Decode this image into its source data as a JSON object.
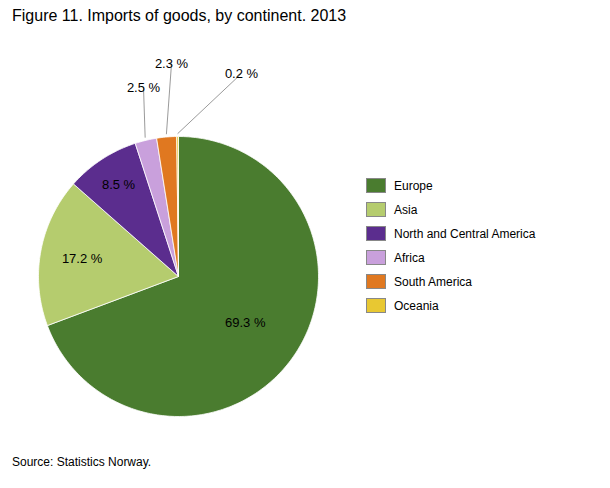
{
  "chart_data": {
    "type": "pie",
    "title": "Figure 11. Imports of goods, by continent. 2013",
    "source": "Source: Statistics Norway.",
    "categories": [
      "Europe",
      "Asia",
      "North and Central America",
      "Africa",
      "South America",
      "Oceania"
    ],
    "values": [
      69.3,
      17.2,
      8.5,
      2.5,
      2.3,
      0.2
    ],
    "value_labels": [
      "69.3 %",
      "17.2 %",
      "8.5 %",
      "2.5 %",
      "2.3 %",
      "0.2 %"
    ],
    "colors": [
      "#4a7c2f",
      "#b5cc6e",
      "#5b2d8e",
      "#c9a0dc",
      "#e07820",
      "#e8c832"
    ],
    "data_labels": true,
    "legend": "right"
  }
}
